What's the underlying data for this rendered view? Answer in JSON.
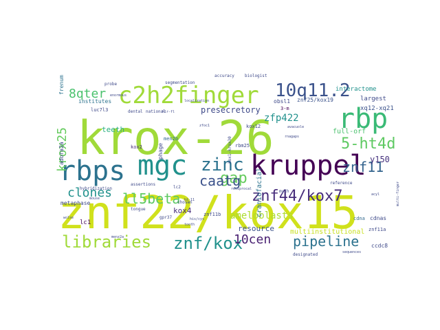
{
  "words": [
    {
      "text": "krox-26",
      "color": "#a0da39"
    },
    {
      "text": "znf22/kox15",
      "color": "#d0e11c"
    },
    {
      "text": "kruppel",
      "color": "#440154"
    },
    {
      "text": "c2h2finger",
      "color": "#a0da39"
    },
    {
      "text": "rbps",
      "color": "#2c728e"
    },
    {
      "text": "mgc",
      "color": "#21918c"
    },
    {
      "text": "rbp",
      "color": "#3aba76"
    },
    {
      "text": "10q11.2",
      "color": "#3b528b"
    },
    {
      "text": "libraries",
      "color": "#a0da39"
    },
    {
      "text": "znf/kox",
      "color": "#21918c"
    },
    {
      "text": "zinc",
      "color": "#2c728e"
    },
    {
      "text": "gap",
      "color": "#65cb5e"
    },
    {
      "text": "znf44/kox7",
      "color": "#472d7b"
    },
    {
      "text": "8qter",
      "color": "#4ac16d"
    },
    {
      "text": "5-ht4d",
      "color": "#5ec962"
    },
    {
      "text": "pipeline",
      "color": "#2c728e"
    },
    {
      "text": "caatg",
      "color": "#3b528b"
    },
    {
      "text": "znf11",
      "color": "#33638d"
    },
    {
      "text": "clones",
      "color": "#21918c"
    },
    {
      "text": "ll5beta",
      "color": "#5ec962"
    },
    {
      "text": "10cen",
      "color": "#481f71"
    },
    {
      "text": "krox25",
      "color": "#65cb5e"
    },
    {
      "text": "ameloblasts",
      "color": "#addc30"
    },
    {
      "text": "zfp422",
      "color": "#21918c"
    },
    {
      "text": "presecretory",
      "color": "#3e4989"
    },
    {
      "text": "resource",
      "color": "#3b528b"
    },
    {
      "text": "y150",
      "color": "#46327e"
    },
    {
      "text": "kox4",
      "color": "#472d7b"
    },
    {
      "text": "teeth",
      "color": "#28ae80"
    },
    {
      "text": "full-orf",
      "color": "#4ac16d"
    },
    {
      "text": "craniofacial",
      "color": "#2c728e"
    },
    {
      "text": "multiinstitutional",
      "color": "#c8e020"
    },
    {
      "text": "interactome",
      "color": "#21918c"
    },
    {
      "text": "largest",
      "color": "#3e4989"
    },
    {
      "text": "xq12-xq21",
      "color": "#3b528b"
    },
    {
      "text": "institutes",
      "color": "#2c728e"
    },
    {
      "text": "frenum",
      "color": "#2c728e"
    },
    {
      "text": "obsl1",
      "color": "#3e4989"
    },
    {
      "text": "znf25/kox19",
      "color": "#3b528b"
    },
    {
      "text": "luc7l3",
      "color": "#3e4989"
    },
    {
      "text": "men2b",
      "color": "#31688e"
    },
    {
      "text": "adora2a",
      "color": "#3e4989"
    },
    {
      "text": "kox2",
      "color": "#472d7b"
    },
    {
      "text": "metaphase",
      "color": "#3e4989"
    },
    {
      "text": "lc1",
      "color": "#440154"
    },
    {
      "text": "cdnas",
      "color": "#3e4989"
    },
    {
      "text": "cdna",
      "color": "#31688e"
    },
    {
      "text": "ccdc8",
      "color": "#3e4989"
    },
    {
      "text": "znf11a",
      "color": "#3e4989"
    },
    {
      "text": "znf11b",
      "color": "#3e4989"
    },
    {
      "text": "rbm25",
      "color": "#3e4989"
    },
    {
      "text": "kox12",
      "color": "#3e4989"
    },
    {
      "text": "3-m",
      "color": "#440154"
    },
    {
      "text": "phage",
      "color": "#3e4989"
    },
    {
      "text": "hybridization",
      "color": "#3e4989"
    },
    {
      "text": "assertions",
      "color": "#3e4989"
    },
    {
      "text": "lc2",
      "color": "#3e4989"
    },
    {
      "text": "tongue",
      "color": "#3e4989"
    },
    {
      "text": "chosen",
      "color": "#3e4989"
    },
    {
      "text": "myth",
      "color": "#3e4989"
    },
    {
      "text": "designated",
      "color": "#3e4989"
    },
    {
      "text": "reference",
      "color": "#3e4989"
    },
    {
      "text": "dental",
      "color": "#3e4989"
    },
    {
      "text": "national",
      "color": "#3e4989"
    },
    {
      "text": "gpr37",
      "color": "#3e4989"
    },
    {
      "text": "accuracy",
      "color": "#3e4989"
    },
    {
      "text": "biologist",
      "color": "#3e4989"
    },
    {
      "text": "probe",
      "color": "#3e4989"
    },
    {
      "text": "segmentation",
      "color": "#3e4989"
    },
    {
      "text": "menz2a",
      "color": "#3e4989"
    },
    {
      "text": "zfoc1",
      "color": "#3e4989"
    },
    {
      "text": "localization",
      "color": "#3e4989"
    },
    {
      "text": "kox1-krox30",
      "color": "#3e4989"
    },
    {
      "text": "sequences",
      "color": "#3e4989"
    },
    {
      "text": "multi-finger",
      "color": "#3e4989"
    },
    {
      "text": "enormous",
      "color": "#3e4989"
    },
    {
      "text": "hlr-fl",
      "color": "#3e4989"
    },
    {
      "text": "avacuole",
      "color": "#3e4989"
    },
    {
      "text": "reciprocal",
      "color": "#3e4989"
    },
    {
      "text": "ht-11",
      "color": "#3e4989"
    },
    {
      "text": "his/cys",
      "color": "#3e4989"
    },
    {
      "text": "tooth",
      "color": "#3e4989"
    },
    {
      "text": "acyl",
      "color": "#3e4989"
    },
    {
      "text": "rnagaps",
      "color": "#3e4989"
    },
    {
      "text": "wolse",
      "color": "#3e4989"
    },
    {
      "text": "mouse",
      "color": "#3e4989"
    }
  ]
}
